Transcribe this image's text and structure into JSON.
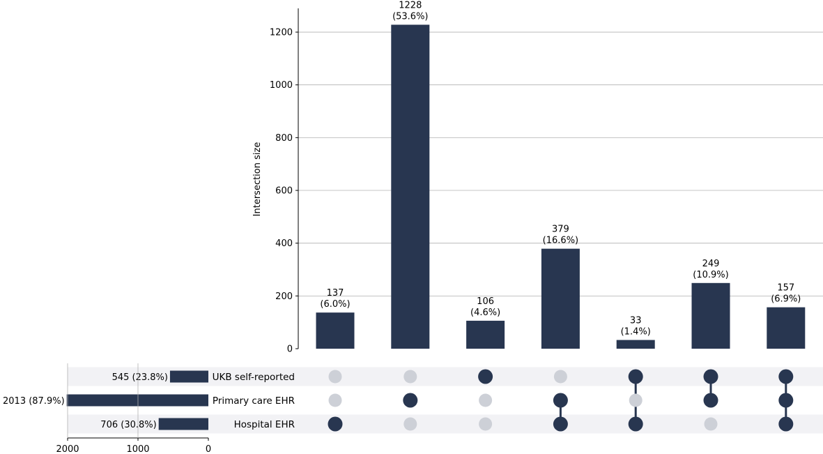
{
  "chart_data": {
    "type": "bar",
    "subtype": "upset",
    "title": "",
    "ylabel": "Intersection size",
    "ylim": [
      0,
      1290
    ],
    "yticks": [
      0,
      200,
      400,
      600,
      800,
      1000,
      1200
    ],
    "grid": true,
    "colors": {
      "bar": "#283650",
      "dot_inactive": "#cdd0d7",
      "stripe": "#f2f2f5",
      "grid": "#b0b0b0"
    },
    "sets": [
      {
        "name": "UKB self-reported",
        "size": 545,
        "label": "545 (23.8%)"
      },
      {
        "name": "Primary care EHR",
        "size": 2013,
        "label": "2013 (87.9%)"
      },
      {
        "name": "Hospital EHR",
        "size": 706,
        "label": "706 (30.8%)"
      }
    ],
    "set_size_axis": {
      "ticks": [
        2000,
        1000,
        0
      ],
      "max": 2000
    },
    "intersections": [
      {
        "members": [
          "Hospital EHR"
        ],
        "value": 137,
        "count_label": "137",
        "pct_label": "(6.0%)"
      },
      {
        "members": [
          "Primary care EHR"
        ],
        "value": 1228,
        "count_label": "1228",
        "pct_label": "(53.6%)"
      },
      {
        "members": [
          "UKB self-reported"
        ],
        "value": 106,
        "count_label": "106",
        "pct_label": "(4.6%)"
      },
      {
        "members": [
          "Primary care EHR",
          "Hospital EHR"
        ],
        "value": 379,
        "count_label": "379",
        "pct_label": "(16.6%)"
      },
      {
        "members": [
          "UKB self-reported",
          "Hospital EHR"
        ],
        "value": 33,
        "count_label": "33",
        "pct_label": "(1.4%)"
      },
      {
        "members": [
          "UKB self-reported",
          "Primary care EHR"
        ],
        "value": 249,
        "count_label": "249",
        "pct_label": "(10.9%)"
      },
      {
        "members": [
          "UKB self-reported",
          "Primary care EHR",
          "Hospital EHR"
        ],
        "value": 157,
        "count_label": "157",
        "pct_label": "(6.9%)"
      }
    ]
  }
}
